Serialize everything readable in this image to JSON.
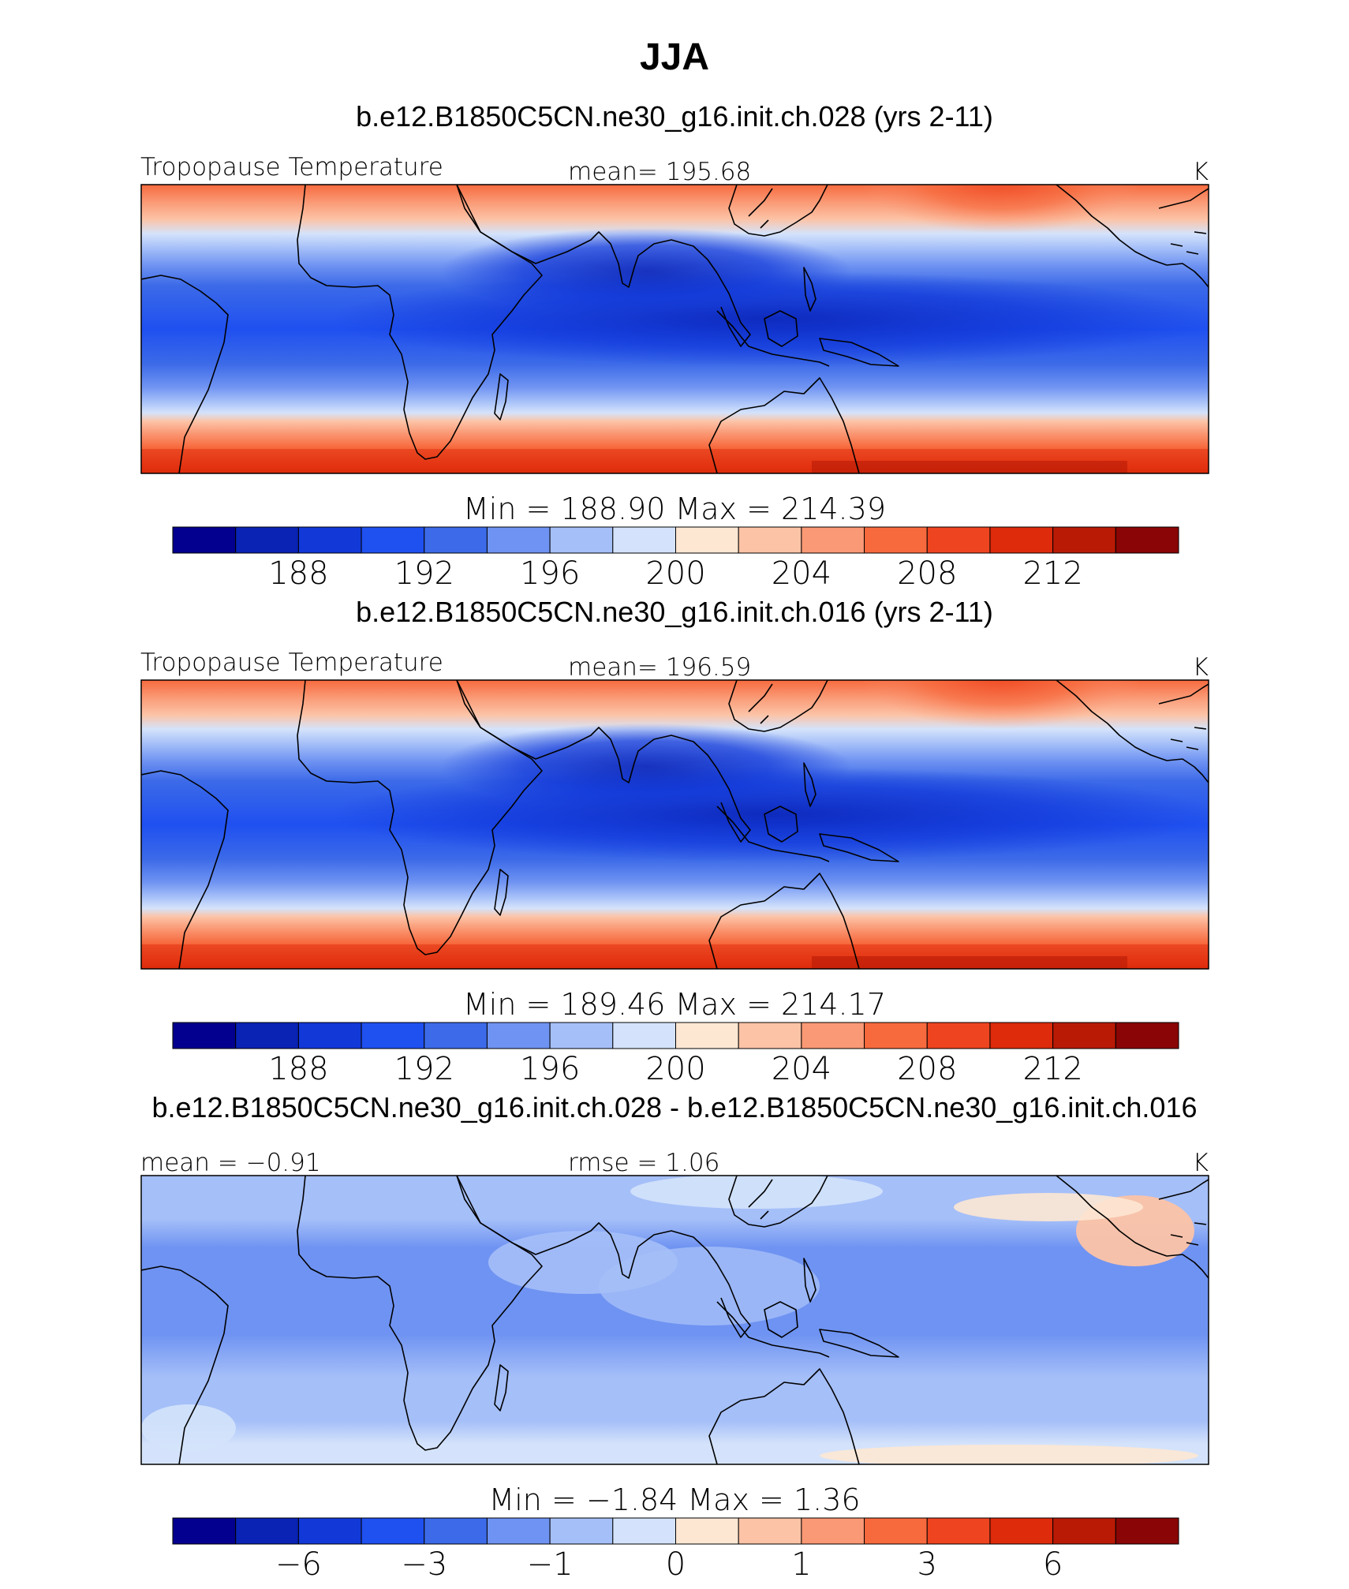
{
  "figure": {
    "title": "JJA"
  },
  "colors": {
    "palette": [
      "#04008f",
      "#0a23b5",
      "#1238d8",
      "#1f50f0",
      "#3c6ae8",
      "#6f93f2",
      "#a5bff8",
      "#d4e3fb",
      "#fde7d3",
      "#fcc3a6",
      "#fa9975",
      "#f76a3e",
      "#ee4420",
      "#dd2b0b",
      "#b81a06",
      "#8a0505"
    ]
  },
  "chart_data": [
    {
      "type": "heatmap",
      "panel_title": "b.e12.B1850C5CN.ne30_g16.init.ch.028 (yrs 2-11)",
      "left_label": "Tropopause Temperature",
      "center_label": "mean=  195.68",
      "right_label": "K",
      "minmax_label": "Min  =  188.90  Max  =  214.39",
      "mean": 195.68,
      "min": 188.9,
      "max": 214.39,
      "units": "K",
      "lat_range": [
        -40,
        40
      ],
      "lon_range": [
        -60,
        300
      ],
      "contour_levels": [
        186,
        188,
        190,
        192,
        194,
        196,
        198,
        200,
        202,
        204,
        206,
        208,
        210,
        212,
        214
      ],
      "colorbar_ticks": [
        "188",
        "192",
        "196",
        "200",
        "204",
        "208",
        "212"
      ],
      "colorbar_tick_index": [
        1,
        3,
        5,
        7,
        9,
        11,
        13
      ]
    },
    {
      "type": "heatmap",
      "panel_title": "b.e12.B1850C5CN.ne30_g16.init.ch.016 (yrs 2-11)",
      "left_label": "Tropopause Temperature",
      "center_label": "mean=  196.59",
      "right_label": "K",
      "minmax_label": "Min  =  189.46  Max  =  214.17",
      "mean": 196.59,
      "min": 189.46,
      "max": 214.17,
      "units": "K",
      "lat_range": [
        -40,
        40
      ],
      "lon_range": [
        -60,
        300
      ],
      "contour_levels": [
        186,
        188,
        190,
        192,
        194,
        196,
        198,
        200,
        202,
        204,
        206,
        208,
        210,
        212,
        214
      ],
      "colorbar_ticks": [
        "188",
        "192",
        "196",
        "200",
        "204",
        "208",
        "212"
      ],
      "colorbar_tick_index": [
        1,
        3,
        5,
        7,
        9,
        11,
        13
      ]
    },
    {
      "type": "heatmap",
      "panel_title": "b.e12.B1850C5CN.ne30_g16.init.ch.028 - b.e12.B1850C5CN.ne30_g16.init.ch.016",
      "left_label": "mean =   −0.91",
      "center_label": "rmse =     1.06",
      "right_label": "K",
      "minmax_label": "Min  =    −1.84  Max  =     1.36",
      "mean": -0.91,
      "rmse": 1.06,
      "min": -1.84,
      "max": 1.36,
      "units": "K",
      "lat_range": [
        -40,
        40
      ],
      "lon_range": [
        -60,
        300
      ],
      "contour_levels": [
        -8,
        -6,
        -4,
        -3,
        -2,
        -1,
        -0.5,
        0,
        0.5,
        1,
        2,
        3,
        4,
        6,
        8
      ],
      "colorbar_ticks": [
        "−6",
        "−3",
        "−1",
        "0",
        "1",
        "3",
        "6"
      ],
      "colorbar_tick_index": [
        1,
        3,
        5,
        7,
        9,
        11,
        13
      ]
    }
  ]
}
